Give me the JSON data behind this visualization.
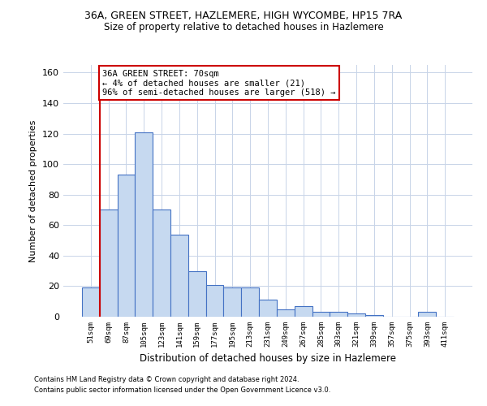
{
  "title": "36A, GREEN STREET, HAZLEMERE, HIGH WYCOMBE, HP15 7RA",
  "subtitle": "Size of property relative to detached houses in Hazlemere",
  "xlabel": "Distribution of detached houses by size in Hazlemere",
  "ylabel": "Number of detached properties",
  "bin_labels": [
    "51sqm",
    "69sqm",
    "87sqm",
    "105sqm",
    "123sqm",
    "141sqm",
    "159sqm",
    "177sqm",
    "195sqm",
    "213sqm",
    "231sqm",
    "249sqm",
    "267sqm",
    "285sqm",
    "303sqm",
    "321sqm",
    "339sqm",
    "357sqm",
    "375sqm",
    "393sqm",
    "411sqm"
  ],
  "bar_values": [
    19,
    70,
    93,
    121,
    70,
    54,
    30,
    21,
    19,
    19,
    11,
    5,
    7,
    3,
    3,
    2,
    1,
    0,
    0,
    3,
    0
  ],
  "bar_color": "#c6d9f0",
  "bar_edge_color": "#4472c4",
  "vline_x": 0.5,
  "vline_color": "#cc0000",
  "ylim": [
    0,
    165
  ],
  "yticks": [
    0,
    20,
    40,
    60,
    80,
    100,
    120,
    140,
    160
  ],
  "annotation_text": "36A GREEN STREET: 70sqm\n← 4% of detached houses are smaller (21)\n96% of semi-detached houses are larger (518) →",
  "annotation_box_color": "#ffffff",
  "annotation_box_edge": "#cc0000",
  "footer1": "Contains HM Land Registry data © Crown copyright and database right 2024.",
  "footer2": "Contains public sector information licensed under the Open Government Licence v3.0.",
  "bg_color": "#ffffff",
  "grid_color": "#c8d4e8",
  "title_fontsize": 9,
  "subtitle_fontsize": 8.5,
  "ylabel_fontsize": 8,
  "xlabel_fontsize": 8.5,
  "ytick_fontsize": 8,
  "xtick_fontsize": 6.5,
  "annot_fontsize": 7.5,
  "footer_fontsize": 6
}
